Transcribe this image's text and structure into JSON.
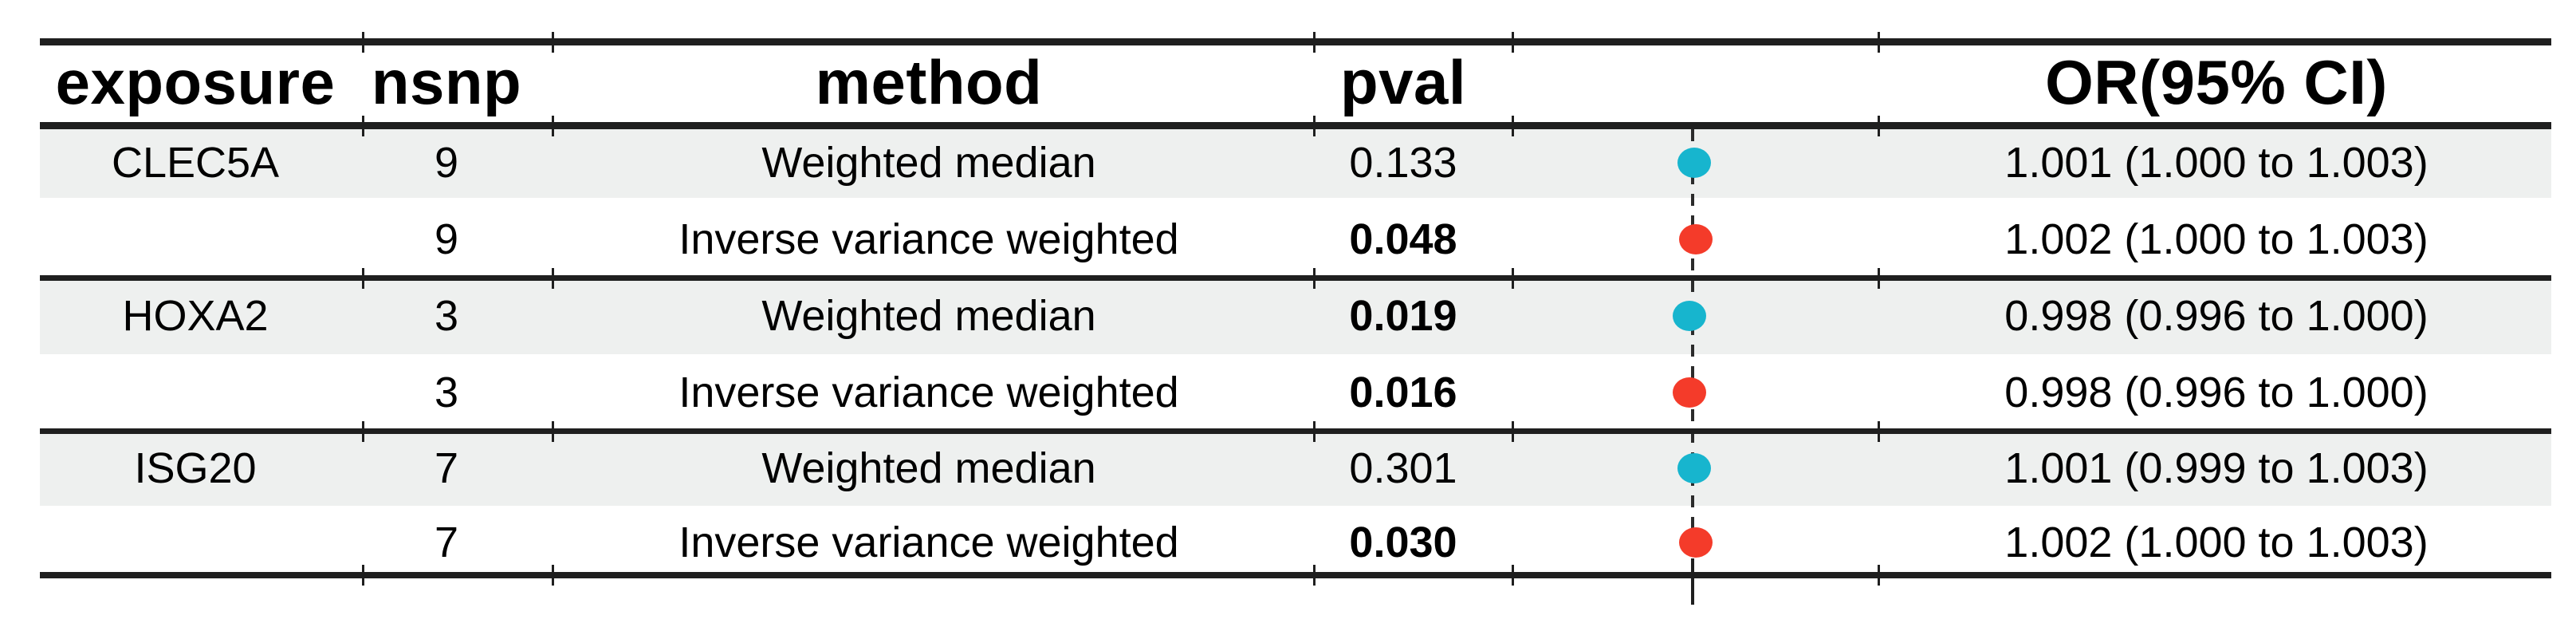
{
  "figure": {
    "columns": {
      "exposure": "exposure",
      "nsnp": "nsnp",
      "method": "method",
      "pval": "pval",
      "or_ci": "OR(95% CI)"
    }
  },
  "chart_data": {
    "type": "scatter",
    "subtype": "forest-plot",
    "title": "",
    "xlabel": "",
    "null_line_or": 1.0,
    "legend": "none",
    "rows": [
      {
        "exposure": "CLEC5A",
        "nsnp": "9",
        "method": "Weighted median",
        "pval": "0.133",
        "or": 1.001,
        "ci_low": 1.0,
        "ci_high": 1.003,
        "or_ci_text": "1.001 (1.000 to 1.003)",
        "dot": "cyan"
      },
      {
        "exposure": "",
        "nsnp": "9",
        "method": "Inverse variance weighted",
        "pval": "0.048",
        "or": 1.002,
        "ci_low": 1.0,
        "ci_high": 1.003,
        "or_ci_text": "1.002 (1.000 to 1.003)",
        "dot": "red"
      },
      {
        "exposure": "HOXA2",
        "nsnp": "3",
        "method": "Weighted median",
        "pval": "0.019",
        "or": 0.998,
        "ci_low": 0.996,
        "ci_high": 1.0,
        "or_ci_text": "0.998 (0.996 to 1.000)",
        "dot": "cyan"
      },
      {
        "exposure": "",
        "nsnp": "3",
        "method": "Inverse variance weighted",
        "pval": "0.016",
        "or": 0.998,
        "ci_low": 0.996,
        "ci_high": 1.0,
        "or_ci_text": "0.998 (0.996 to 1.000)",
        "dot": "red"
      },
      {
        "exposure": "ISG20",
        "nsnp": "7",
        "method": "Weighted median",
        "pval": "0.301",
        "or": 1.001,
        "ci_low": 0.999,
        "ci_high": 1.003,
        "or_ci_text": "1.001 (0.999 to 1.003)",
        "dot": "cyan"
      },
      {
        "exposure": "",
        "nsnp": "7",
        "method": "Inverse variance weighted",
        "pval": "0.030",
        "or": 1.002,
        "ci_low": 1.0,
        "ci_high": 1.003,
        "or_ci_text": "1.002 (1.000 to 1.003)",
        "dot": "red"
      }
    ]
  },
  "colors": {
    "cyan": "#17b5ce",
    "red": "#f43b2a",
    "stripe": "#eef0ef",
    "line": "#1f1f1f",
    "dash": "#2b2b2b"
  }
}
